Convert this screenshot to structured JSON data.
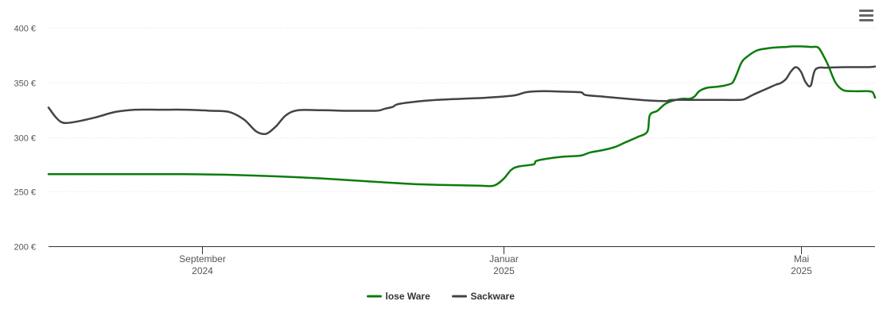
{
  "chart_data": {
    "type": "line",
    "title": "",
    "xlabel": "",
    "ylabel": "",
    "ylim": [
      200,
      400
    ],
    "yticks": [
      {
        "value": 200,
        "label": "200 €"
      },
      {
        "value": 250,
        "label": "250 €"
      },
      {
        "value": 300,
        "label": "300 €"
      },
      {
        "value": 350,
        "label": "350 €"
      },
      {
        "value": 400,
        "label": "400 €"
      }
    ],
    "xrange": [
      "2024-07-01",
      "2025-05-31"
    ],
    "xticks": [
      {
        "date": "2024-09-01",
        "label": "September",
        "sublabel": "2024"
      },
      {
        "date": "2025-01-01",
        "label": "Januar",
        "sublabel": "2025"
      },
      {
        "date": "2025-05-01",
        "label": "Mai",
        "sublabel": "2025"
      }
    ],
    "grid": true,
    "legend": "bottom-center",
    "series": [
      {
        "name": "lose Ware",
        "color": "#0a7d0a",
        "points": [
          [
            "2024-07-01",
            266
          ],
          [
            "2024-07-20",
            266
          ],
          [
            "2024-08-10",
            266
          ],
          [
            "2024-08-25",
            266
          ],
          [
            "2024-09-10",
            265.5
          ],
          [
            "2024-10-01",
            264
          ],
          [
            "2024-10-20",
            262
          ],
          [
            "2024-11-10",
            259
          ],
          [
            "2024-11-25",
            257
          ],
          [
            "2024-12-10",
            256
          ],
          [
            "2024-12-22",
            255.5
          ],
          [
            "2024-12-28",
            255.5
          ],
          [
            "2025-01-01",
            262
          ],
          [
            "2025-01-04",
            270
          ],
          [
            "2025-01-07",
            273
          ],
          [
            "2025-01-13",
            275
          ],
          [
            "2025-01-14",
            278
          ],
          [
            "2025-01-18",
            280
          ],
          [
            "2025-01-25",
            282
          ],
          [
            "2025-02-01",
            283
          ],
          [
            "2025-02-05",
            286
          ],
          [
            "2025-02-10",
            288
          ],
          [
            "2025-02-15",
            291
          ],
          [
            "2025-02-19",
            295
          ],
          [
            "2025-02-24",
            300
          ],
          [
            "2025-02-28",
            305
          ],
          [
            "2025-03-01",
            320
          ],
          [
            "2025-03-04",
            324
          ],
          [
            "2025-03-07",
            330
          ],
          [
            "2025-03-10",
            333
          ],
          [
            "2025-03-14",
            335
          ],
          [
            "2025-03-17",
            335
          ],
          [
            "2025-03-19",
            337
          ],
          [
            "2025-03-21",
            342
          ],
          [
            "2025-03-24",
            345
          ],
          [
            "2025-03-28",
            346
          ],
          [
            "2025-03-31",
            347
          ],
          [
            "2025-04-03",
            349
          ],
          [
            "2025-04-04",
            352
          ],
          [
            "2025-04-05",
            357
          ],
          [
            "2025-04-07",
            368
          ],
          [
            "2025-04-09",
            373
          ],
          [
            "2025-04-13",
            379
          ],
          [
            "2025-04-17",
            381
          ],
          [
            "2025-04-21",
            382
          ],
          [
            "2025-04-25",
            382.5
          ],
          [
            "2025-04-28",
            383
          ],
          [
            "2025-05-01",
            383
          ],
          [
            "2025-05-05",
            382.5
          ],
          [
            "2025-05-08",
            382
          ],
          [
            "2025-05-10",
            375
          ],
          [
            "2025-05-12",
            366
          ],
          [
            "2025-05-15",
            350
          ],
          [
            "2025-05-18",
            343
          ],
          [
            "2025-05-22",
            342
          ],
          [
            "2025-05-26",
            342
          ],
          [
            "2025-05-28",
            342
          ],
          [
            "2025-05-30",
            341
          ],
          [
            "2025-05-31",
            336
          ]
        ]
      },
      {
        "name": "Sackware",
        "color": "#434348",
        "points": [
          [
            "2024-07-01",
            327
          ],
          [
            "2024-07-04",
            318
          ],
          [
            "2024-07-07",
            313
          ],
          [
            "2024-07-12",
            314
          ],
          [
            "2024-07-20",
            318
          ],
          [
            "2024-07-28",
            323
          ],
          [
            "2024-08-05",
            325
          ],
          [
            "2024-08-15",
            325
          ],
          [
            "2024-08-25",
            325
          ],
          [
            "2024-08-31",
            324.5
          ],
          [
            "2024-09-05",
            324
          ],
          [
            "2024-09-12",
            323
          ],
          [
            "2024-09-18",
            316
          ],
          [
            "2024-09-23",
            305
          ],
          [
            "2024-09-27",
            303
          ],
          [
            "2024-10-01",
            310
          ],
          [
            "2024-10-05",
            320
          ],
          [
            "2024-10-10",
            324.5
          ],
          [
            "2024-10-20",
            324.5
          ],
          [
            "2024-10-30",
            324
          ],
          [
            "2024-11-05",
            324
          ],
          [
            "2024-11-10",
            324
          ],
          [
            "2024-11-12",
            324.5
          ],
          [
            "2024-11-14",
            326
          ],
          [
            "2024-11-17",
            327.5
          ],
          [
            "2024-11-19",
            330
          ],
          [
            "2024-11-25",
            332
          ],
          [
            "2024-12-05",
            334
          ],
          [
            "2024-12-15",
            335
          ],
          [
            "2024-12-25",
            336
          ],
          [
            "2025-01-05",
            338
          ],
          [
            "2025-01-10",
            341
          ],
          [
            "2025-01-17",
            342
          ],
          [
            "2025-01-25",
            341.5
          ],
          [
            "2025-02-01",
            341
          ],
          [
            "2025-02-03",
            338.5
          ],
          [
            "2025-02-10",
            337
          ],
          [
            "2025-02-20",
            335
          ],
          [
            "2025-02-28",
            333.5
          ],
          [
            "2025-03-05",
            333
          ],
          [
            "2025-03-08",
            333
          ],
          [
            "2025-03-10",
            334
          ],
          [
            "2025-03-20",
            334
          ],
          [
            "2025-03-31",
            334
          ],
          [
            "2025-04-05",
            334
          ],
          [
            "2025-04-08",
            334.5
          ],
          [
            "2025-04-12",
            339
          ],
          [
            "2025-04-16",
            343
          ],
          [
            "2025-04-19",
            346
          ],
          [
            "2025-04-21",
            348
          ],
          [
            "2025-04-23",
            349.5
          ],
          [
            "2025-04-25",
            353
          ],
          [
            "2025-04-27",
            360
          ],
          [
            "2025-04-29",
            364
          ],
          [
            "2025-05-01",
            360
          ],
          [
            "2025-05-03",
            350
          ],
          [
            "2025-05-05",
            347
          ],
          [
            "2025-05-07",
            362
          ],
          [
            "2025-05-12",
            363.5
          ],
          [
            "2025-05-20",
            364
          ],
          [
            "2025-05-28",
            364
          ],
          [
            "2025-05-31",
            364.5
          ]
        ]
      }
    ]
  }
}
